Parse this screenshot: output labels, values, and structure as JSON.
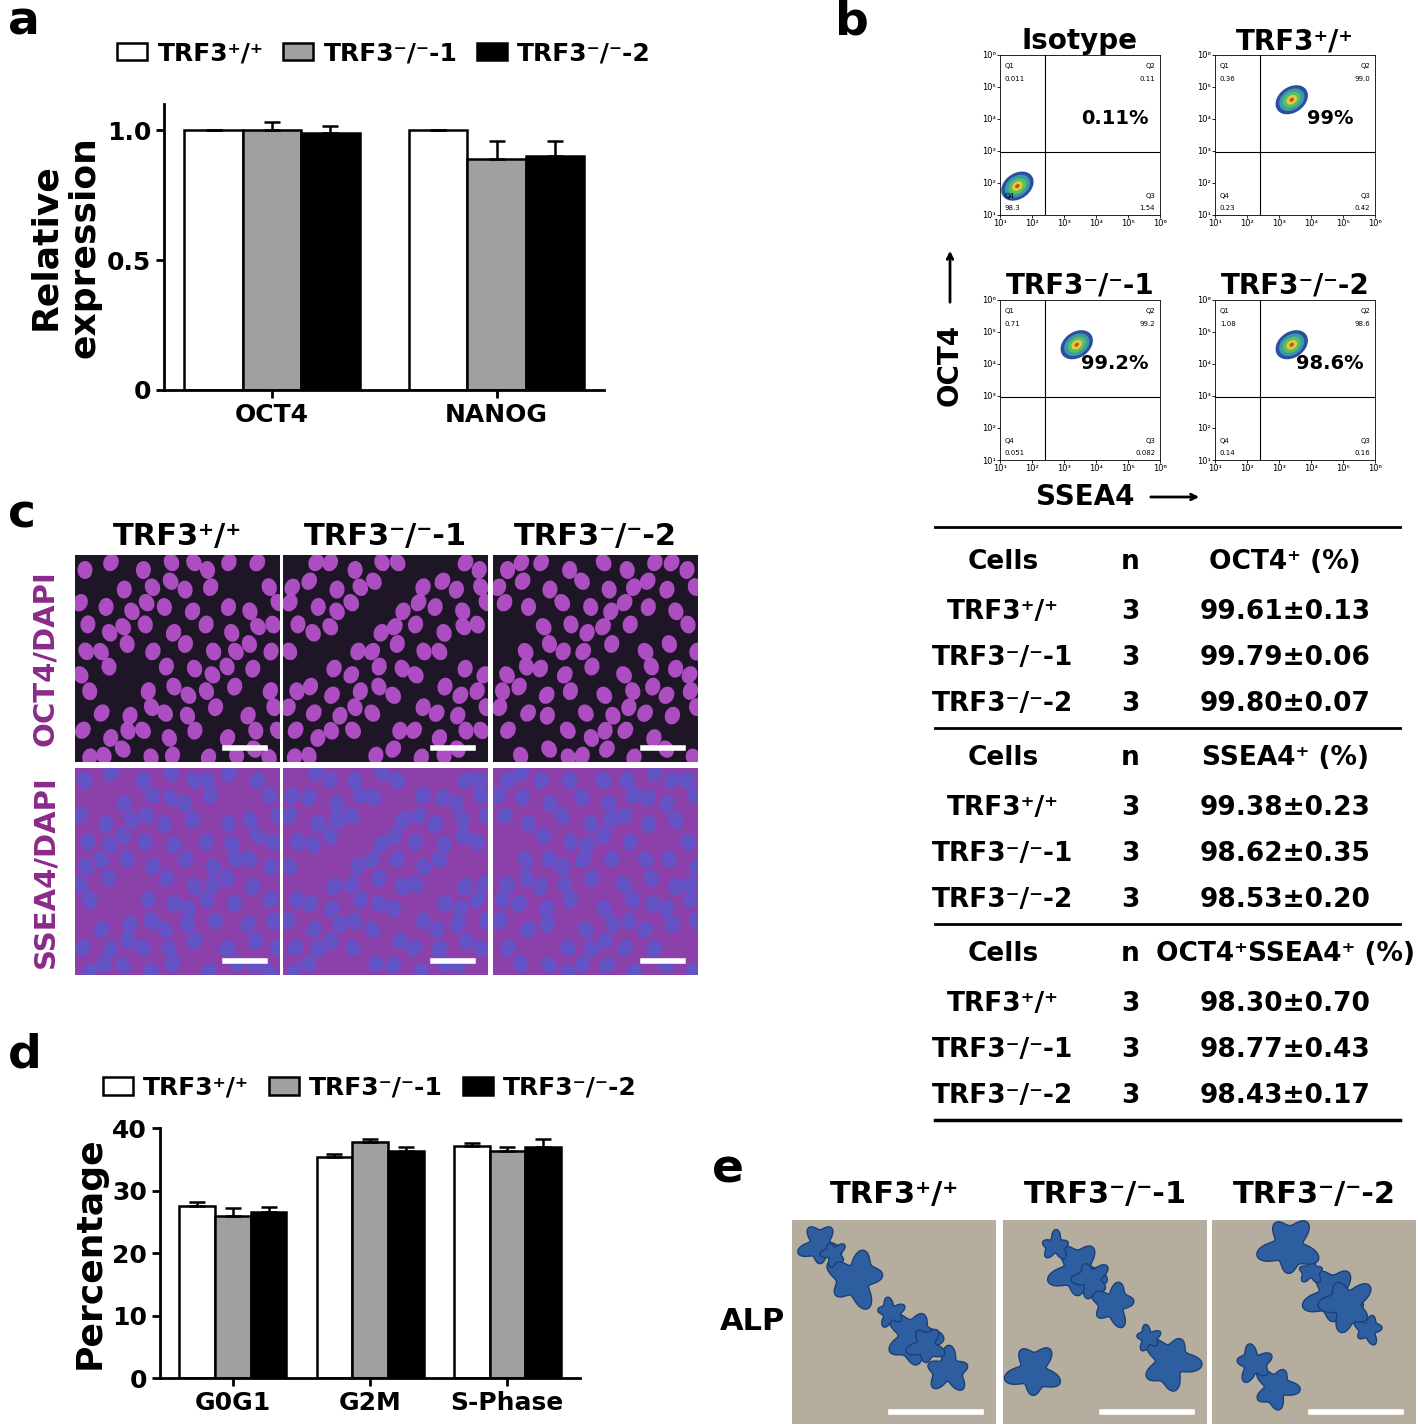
{
  "panel_labels": [
    "a",
    "b",
    "c",
    "d",
    "e"
  ],
  "chart_data": [
    {
      "type": "bar",
      "categories": [
        "OCT4",
        "NANOG"
      ],
      "ylabel": "Relative\nexpression",
      "series": [
        {
          "name": "TRF3⁺/⁺",
          "color": "#ffffff",
          "values": [
            1.0,
            1.0
          ],
          "errors": [
            0,
            0
          ]
        },
        {
          "name": "TRF3⁻/⁻-1",
          "color": "#a0a0a0",
          "values": [
            1.0,
            0.89
          ],
          "errors": [
            0.03,
            0.07
          ]
        },
        {
          "name": "TRF3⁻/⁻-2",
          "color": "#000000",
          "values": [
            0.99,
            0.9
          ],
          "errors": [
            0.025,
            0.06
          ]
        }
      ],
      "ylim": [
        0,
        1.1
      ],
      "yticks": [
        0,
        0.5,
        {
          "value": 1,
          "label": "1.0"
        }
      ],
      "legend": "upper center"
    },
    {
      "type": "bar",
      "categories": [
        "G0G1",
        "G2M",
        "S-Phase"
      ],
      "ylabel": "Percentage",
      "series": [
        {
          "name": "TRF3⁺/⁺",
          "color": "#ffffff",
          "values": [
            27.5,
            35.3,
            37.2
          ],
          "errors": [
            0.7,
            0.6,
            0.4
          ]
        },
        {
          "name": "TRF3⁻/⁻-1",
          "color": "#a0a0a0",
          "values": [
            26.0,
            37.8,
            36.3
          ],
          "errors": [
            1.2,
            0.5,
            0.7
          ]
        },
        {
          "name": "TRF3⁻/⁻-2",
          "color": "#000000",
          "values": [
            26.5,
            36.3,
            37.0
          ],
          "errors": [
            0.8,
            0.6,
            1.2
          ]
        }
      ],
      "ylim": [
        0,
        40
      ],
      "yticks": [
        0,
        10,
        20,
        30,
        40
      ],
      "legend": "upper center"
    }
  ],
  "flow_cytometry": {
    "type": "scatter",
    "log": true,
    "xlabel": "SSEA4",
    "ylabel": "OCT4",
    "xlim": [
      10,
      1000000
    ],
    "ylim": [
      10,
      1000000
    ],
    "xticks": [
      {
        "value": 10,
        "label": "10¹"
      },
      {
        "value": 100,
        "label": "10²"
      },
      {
        "value": 1000,
        "label": "10³"
      },
      {
        "value": 10000,
        "label": "10⁴"
      },
      {
        "value": 100000,
        "label": "10⁵"
      },
      {
        "value": 1000000,
        "label": "10⁶"
      }
    ],
    "yticks": [
      {
        "value": 10,
        "label": "10¹"
      },
      {
        "value": 100,
        "label": "10²"
      },
      {
        "value": 1000,
        "label": "10³"
      },
      {
        "value": 10000,
        "label": "10⁴"
      },
      {
        "value": 100000,
        "label": "10⁵"
      },
      {
        "value": 1000000,
        "label": "10⁶"
      }
    ],
    "gate": {
      "x": 250,
      "y": 900
    },
    "quadrant_names": [
      "Q1",
      "Q2",
      "Q3",
      "Q4"
    ],
    "plots": [
      {
        "title": "Isotype",
        "label": "0.11%",
        "quadrants": [
          0.011,
          0.11,
          1.54,
          98.3
        ],
        "center": [
          35,
          80
        ]
      },
      {
        "title": "TRF3⁺/⁺",
        "label": "99%",
        "quadrants": [
          0.36,
          99.0,
          0.42,
          0.23
        ],
        "center": [
          2500,
          40000
        ]
      },
      {
        "title": "TRF3⁻/⁻-1",
        "label": "99.2%",
        "quadrants": [
          0.71,
          99.2,
          0.082,
          0.051
        ],
        "center": [
          2500,
          40000
        ]
      },
      {
        "title": "TRF3⁻/⁻-2",
        "label": "98.6%",
        "quadrants": [
          1.08,
          98.6,
          0.16,
          0.14
        ],
        "center": [
          2500,
          40000
        ]
      }
    ]
  },
  "table": {
    "sections": [
      {
        "header": [
          "Cells",
          "n",
          "OCT4⁺ (%)"
        ],
        "rows": [
          [
            "TRF3⁺/⁺",
            "3",
            "99.61±0.13"
          ],
          [
            "TRF3⁻/⁻-1",
            "3",
            "99.79±0.06"
          ],
          [
            "TRF3⁻/⁻-2",
            "3",
            "99.80±0.07"
          ]
        ]
      },
      {
        "header": [
          "Cells",
          "n",
          "SSEA4⁺ (%)"
        ],
        "rows": [
          [
            "TRF3⁺/⁺",
            "3",
            "99.38±0.23"
          ],
          [
            "TRF3⁻/⁻-1",
            "3",
            "98.62±0.35"
          ],
          [
            "TRF3⁻/⁻-2",
            "3",
            "98.53±0.20"
          ]
        ]
      },
      {
        "header": [
          "Cells",
          "n",
          "OCT4⁺SSEA4⁺ (%)"
        ],
        "rows": [
          [
            "TRF3⁺/⁺",
            "3",
            "98.30±0.70"
          ],
          [
            "TRF3⁻/⁻-1",
            "3",
            "98.77±0.43"
          ],
          [
            "TRF3⁻/⁻-2",
            "3",
            "98.43±0.17"
          ]
        ]
      }
    ]
  },
  "images": {
    "c": {
      "columns": [
        "TRF3⁺/⁺",
        "TRF3⁻/⁻-1",
        "TRF3⁻/⁻-2"
      ],
      "rows": [
        "OCT4/DAPI",
        "SSEA4/DAPI"
      ]
    },
    "e": {
      "columns": [
        "TRF3⁺/⁺",
        "TRF3⁻/⁻-1",
        "TRF3⁻/⁻-2"
      ],
      "rows": [
        "ALP"
      ]
    }
  }
}
